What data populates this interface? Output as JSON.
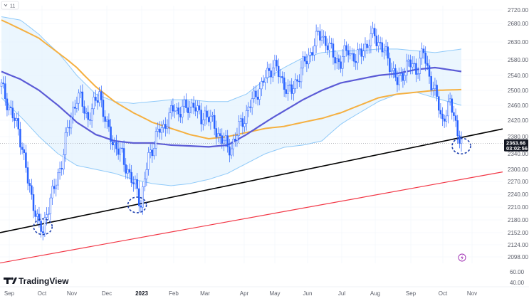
{
  "top_control": {
    "label": "11",
    "chevron_icon": "chevron-down-icon"
  },
  "logo": {
    "text": "TradingView",
    "icon": "tradingview-logo-icon"
  },
  "price_tag": {
    "price": "2363.66",
    "countdown": "03:02:56",
    "color": "#131722"
  },
  "lightning_icon": {
    "name": "lightning-icon",
    "color": "#9c27b0"
  },
  "colors": {
    "up": "#ffffff",
    "down": "#2962ff",
    "candle_edge": "#2962ff",
    "ma_fast": "#5b5bd6",
    "ma_slow": "#f5b041",
    "band": "#90caf9",
    "band_fill": "#e3f2fd",
    "support_line": "#000000",
    "lower_line": "#f23645",
    "marker": "#1e40af"
  },
  "chart_data": {
    "type": "candlestick",
    "y_axis": {
      "scale": "log",
      "ticks": [
        "2720.00",
        "2680.00",
        "2630.00",
        "2580.00",
        "2540.00",
        "2500.00",
        "2460.00",
        "2420.00",
        "2380.00",
        "2340.00",
        "2300.00",
        "2270.00",
        "2240.00",
        "2210.00",
        "2180.00",
        "2152.00",
        "2124.00",
        "2098.00"
      ],
      "ylim": [
        2080,
        2740
      ]
    },
    "volume_axis": {
      "ticks": [
        "60.00",
        "40.00"
      ]
    },
    "x_axis": {
      "ticks": [
        {
          "label": "Sep",
          "bold": false
        },
        {
          "label": "Oct",
          "bold": false
        },
        {
          "label": "Nov",
          "bold": false
        },
        {
          "label": "Dec",
          "bold": false
        },
        {
          "label": "2023",
          "bold": true
        },
        {
          "label": "Feb",
          "bold": false
        },
        {
          "label": "Mar",
          "bold": false
        },
        {
          "label": "Apr",
          "bold": false
        },
        {
          "label": "May",
          "bold": false
        },
        {
          "label": "Jun",
          "bold": false
        },
        {
          "label": "Jul",
          "bold": false
        },
        {
          "label": "Aug",
          "bold": false
        },
        {
          "label": "Sep",
          "bold": false
        },
        {
          "label": "Oct",
          "bold": false
        },
        {
          "label": "Nov",
          "bold": false
        }
      ]
    },
    "current_price": 2363.66,
    "close_path": [
      {
        "i": 0,
        "v": 2510
      },
      {
        "i": 3,
        "v": 2470
      },
      {
        "i": 6,
        "v": 2430
      },
      {
        "i": 9,
        "v": 2395
      },
      {
        "i": 11,
        "v": 2360
      },
      {
        "i": 14,
        "v": 2270
      },
      {
        "i": 16,
        "v": 2230
      },
      {
        "i": 18,
        "v": 2205
      },
      {
        "i": 20,
        "v": 2165
      },
      {
        "i": 22,
        "v": 2150
      },
      {
        "i": 24,
        "v": 2200
      },
      {
        "i": 26,
        "v": 2230
      },
      {
        "i": 28,
        "v": 2250
      },
      {
        "i": 30,
        "v": 2285
      },
      {
        "i": 32,
        "v": 2320
      },
      {
        "i": 34,
        "v": 2370
      },
      {
        "i": 36,
        "v": 2410
      },
      {
        "i": 38,
        "v": 2450
      },
      {
        "i": 40,
        "v": 2480
      },
      {
        "i": 42,
        "v": 2475
      },
      {
        "i": 44,
        "v": 2450
      },
      {
        "i": 46,
        "v": 2425
      },
      {
        "i": 48,
        "v": 2445
      },
      {
        "i": 50,
        "v": 2470
      },
      {
        "i": 52,
        "v": 2500
      },
      {
        "i": 54,
        "v": 2440
      },
      {
        "i": 56,
        "v": 2400
      },
      {
        "i": 58,
        "v": 2385
      },
      {
        "i": 60,
        "v": 2360
      },
      {
        "i": 62,
        "v": 2345
      },
      {
        "i": 64,
        "v": 2335
      },
      {
        "i": 66,
        "v": 2310
      },
      {
        "i": 68,
        "v": 2285
      },
      {
        "i": 70,
        "v": 2260
      },
      {
        "i": 72,
        "v": 2255
      },
      {
        "i": 74,
        "v": 2215
      },
      {
        "i": 76,
        "v": 2275
      },
      {
        "i": 78,
        "v": 2330
      },
      {
        "i": 80,
        "v": 2355
      },
      {
        "i": 82,
        "v": 2380
      },
      {
        "i": 84,
        "v": 2395
      },
      {
        "i": 86,
        "v": 2400
      },
      {
        "i": 88,
        "v": 2425
      },
      {
        "i": 90,
        "v": 2440
      },
      {
        "i": 92,
        "v": 2450
      },
      {
        "i": 94,
        "v": 2440
      },
      {
        "i": 96,
        "v": 2460
      },
      {
        "i": 98,
        "v": 2445
      },
      {
        "i": 100,
        "v": 2455
      },
      {
        "i": 102,
        "v": 2470
      },
      {
        "i": 104,
        "v": 2440
      },
      {
        "i": 106,
        "v": 2420
      },
      {
        "i": 108,
        "v": 2440
      },
      {
        "i": 110,
        "v": 2430
      },
      {
        "i": 112,
        "v": 2410
      },
      {
        "i": 114,
        "v": 2395
      },
      {
        "i": 116,
        "v": 2380
      },
      {
        "i": 118,
        "v": 2370
      },
      {
        "i": 120,
        "v": 2350
      },
      {
        "i": 122,
        "v": 2360
      },
      {
        "i": 124,
        "v": 2375
      },
      {
        "i": 126,
        "v": 2400
      },
      {
        "i": 128,
        "v": 2420
      },
      {
        "i": 130,
        "v": 2440
      },
      {
        "i": 132,
        "v": 2460
      },
      {
        "i": 134,
        "v": 2480
      },
      {
        "i": 136,
        "v": 2500
      },
      {
        "i": 138,
        "v": 2510
      },
      {
        "i": 140,
        "v": 2535
      },
      {
        "i": 142,
        "v": 2550
      },
      {
        "i": 144,
        "v": 2570
      },
      {
        "i": 146,
        "v": 2555
      },
      {
        "i": 148,
        "v": 2530
      },
      {
        "i": 150,
        "v": 2520
      },
      {
        "i": 152,
        "v": 2500
      },
      {
        "i": 154,
        "v": 2495
      },
      {
        "i": 156,
        "v": 2520
      },
      {
        "i": 158,
        "v": 2545
      },
      {
        "i": 160,
        "v": 2565
      },
      {
        "i": 162,
        "v": 2580
      },
      {
        "i": 164,
        "v": 2600
      },
      {
        "i": 166,
        "v": 2625
      },
      {
        "i": 168,
        "v": 2645
      },
      {
        "i": 170,
        "v": 2650
      },
      {
        "i": 172,
        "v": 2630
      },
      {
        "i": 174,
        "v": 2610
      },
      {
        "i": 176,
        "v": 2595
      },
      {
        "i": 178,
        "v": 2580
      },
      {
        "i": 180,
        "v": 2570
      },
      {
        "i": 182,
        "v": 2595
      },
      {
        "i": 184,
        "v": 2615
      },
      {
        "i": 186,
        "v": 2590
      },
      {
        "i": 188,
        "v": 2575
      },
      {
        "i": 190,
        "v": 2600
      },
      {
        "i": 192,
        "v": 2620
      },
      {
        "i": 194,
        "v": 2610
      },
      {
        "i": 196,
        "v": 2640
      },
      {
        "i": 198,
        "v": 2660
      },
      {
        "i": 200,
        "v": 2625
      },
      {
        "i": 202,
        "v": 2605
      },
      {
        "i": 204,
        "v": 2600
      },
      {
        "i": 206,
        "v": 2575
      },
      {
        "i": 208,
        "v": 2540
      },
      {
        "i": 210,
        "v": 2520
      },
      {
        "i": 212,
        "v": 2540
      },
      {
        "i": 214,
        "v": 2555
      },
      {
        "i": 216,
        "v": 2565
      },
      {
        "i": 218,
        "v": 2570
      },
      {
        "i": 220,
        "v": 2555
      },
      {
        "i": 222,
        "v": 2575
      },
      {
        "i": 224,
        "v": 2600
      },
      {
        "i": 226,
        "v": 2560
      },
      {
        "i": 228,
        "v": 2520
      },
      {
        "i": 230,
        "v": 2490
      },
      {
        "i": 232,
        "v": 2460
      },
      {
        "i": 234,
        "v": 2420
      },
      {
        "i": 236,
        "v": 2440
      },
      {
        "i": 238,
        "v": 2460
      },
      {
        "i": 240,
        "v": 2445
      },
      {
        "i": 242,
        "v": 2385
      },
      {
        "i": 244,
        "v": 2364
      }
    ],
    "ma_fast": [
      {
        "i": 0,
        "v": 2550
      },
      {
        "i": 10,
        "v": 2530
      },
      {
        "i": 20,
        "v": 2500
      },
      {
        "i": 30,
        "v": 2460
      },
      {
        "i": 40,
        "v": 2415
      },
      {
        "i": 50,
        "v": 2385
      },
      {
        "i": 60,
        "v": 2370
      },
      {
        "i": 70,
        "v": 2365
      },
      {
        "i": 80,
        "v": 2365
      },
      {
        "i": 90,
        "v": 2360
      },
      {
        "i": 100,
        "v": 2358
      },
      {
        "i": 110,
        "v": 2356
      },
      {
        "i": 120,
        "v": 2360
      },
      {
        "i": 130,
        "v": 2385
      },
      {
        "i": 140,
        "v": 2415
      },
      {
        "i": 150,
        "v": 2445
      },
      {
        "i": 160,
        "v": 2475
      },
      {
        "i": 170,
        "v": 2500
      },
      {
        "i": 180,
        "v": 2520
      },
      {
        "i": 190,
        "v": 2530
      },
      {
        "i": 200,
        "v": 2540
      },
      {
        "i": 210,
        "v": 2545
      },
      {
        "i": 220,
        "v": 2555
      },
      {
        "i": 230,
        "v": 2560
      },
      {
        "i": 244,
        "v": 2550
      }
    ],
    "ma_slow": [
      {
        "i": 0,
        "v": 2690
      },
      {
        "i": 10,
        "v": 2665
      },
      {
        "i": 20,
        "v": 2640
      },
      {
        "i": 30,
        "v": 2600
      },
      {
        "i": 40,
        "v": 2560
      },
      {
        "i": 50,
        "v": 2510
      },
      {
        "i": 60,
        "v": 2470
      },
      {
        "i": 70,
        "v": 2440
      },
      {
        "i": 80,
        "v": 2415
      },
      {
        "i": 90,
        "v": 2400
      },
      {
        "i": 100,
        "v": 2385
      },
      {
        "i": 110,
        "v": 2375
      },
      {
        "i": 120,
        "v": 2380
      },
      {
        "i": 130,
        "v": 2390
      },
      {
        "i": 140,
        "v": 2400
      },
      {
        "i": 150,
        "v": 2405
      },
      {
        "i": 160,
        "v": 2415
      },
      {
        "i": 170,
        "v": 2425
      },
      {
        "i": 180,
        "v": 2440
      },
      {
        "i": 190,
        "v": 2460
      },
      {
        "i": 200,
        "v": 2480
      },
      {
        "i": 210,
        "v": 2490
      },
      {
        "i": 220,
        "v": 2495
      },
      {
        "i": 230,
        "v": 2500
      },
      {
        "i": 244,
        "v": 2502
      }
    ],
    "band_upper": [
      {
        "i": 0,
        "v": 2700
      },
      {
        "i": 10,
        "v": 2690
      },
      {
        "i": 20,
        "v": 2650
      },
      {
        "i": 30,
        "v": 2600
      },
      {
        "i": 40,
        "v": 2540
      },
      {
        "i": 50,
        "v": 2490
      },
      {
        "i": 60,
        "v": 2470
      },
      {
        "i": 70,
        "v": 2465
      },
      {
        "i": 80,
        "v": 2470
      },
      {
        "i": 90,
        "v": 2475
      },
      {
        "i": 100,
        "v": 2475
      },
      {
        "i": 110,
        "v": 2470
      },
      {
        "i": 120,
        "v": 2470
      },
      {
        "i": 130,
        "v": 2490
      },
      {
        "i": 140,
        "v": 2530
      },
      {
        "i": 150,
        "v": 2560
      },
      {
        "i": 160,
        "v": 2585
      },
      {
        "i": 170,
        "v": 2600
      },
      {
        "i": 180,
        "v": 2605
      },
      {
        "i": 190,
        "v": 2605
      },
      {
        "i": 200,
        "v": 2610
      },
      {
        "i": 210,
        "v": 2610
      },
      {
        "i": 220,
        "v": 2605
      },
      {
        "i": 230,
        "v": 2600
      },
      {
        "i": 244,
        "v": 2610
      }
    ],
    "band_lower": [
      {
        "i": 0,
        "v": 2480
      },
      {
        "i": 10,
        "v": 2430
      },
      {
        "i": 20,
        "v": 2380
      },
      {
        "i": 30,
        "v": 2340
      },
      {
        "i": 40,
        "v": 2310
      },
      {
        "i": 50,
        "v": 2300
      },
      {
        "i": 60,
        "v": 2290
      },
      {
        "i": 70,
        "v": 2275
      },
      {
        "i": 80,
        "v": 2265
      },
      {
        "i": 90,
        "v": 2260
      },
      {
        "i": 100,
        "v": 2265
      },
      {
        "i": 110,
        "v": 2275
      },
      {
        "i": 120,
        "v": 2290
      },
      {
        "i": 130,
        "v": 2315
      },
      {
        "i": 140,
        "v": 2340
      },
      {
        "i": 150,
        "v": 2355
      },
      {
        "i": 160,
        "v": 2360
      },
      {
        "i": 170,
        "v": 2370
      },
      {
        "i": 180,
        "v": 2410
      },
      {
        "i": 190,
        "v": 2440
      },
      {
        "i": 200,
        "v": 2470
      },
      {
        "i": 210,
        "v": 2490
      },
      {
        "i": 220,
        "v": 2495
      },
      {
        "i": 230,
        "v": 2480
      },
      {
        "i": 244,
        "v": 2460
      }
    ],
    "trendlines": [
      {
        "name": "support",
        "color": "#000000",
        "from": {
          "i": 0,
          "v": 2152
        },
        "to": {
          "i": 244,
          "v": 2378
        }
      },
      {
        "name": "lower-channel",
        "color": "#f23645",
        "from": {
          "i": 0,
          "v": 2085
        },
        "to": {
          "i": 244,
          "v": 2275
        }
      }
    ],
    "markers": [
      {
        "i": 22,
        "v": 2165
      },
      {
        "i": 72,
        "v": 2215
      },
      {
        "i": 244,
        "v": 2358
      }
    ]
  }
}
